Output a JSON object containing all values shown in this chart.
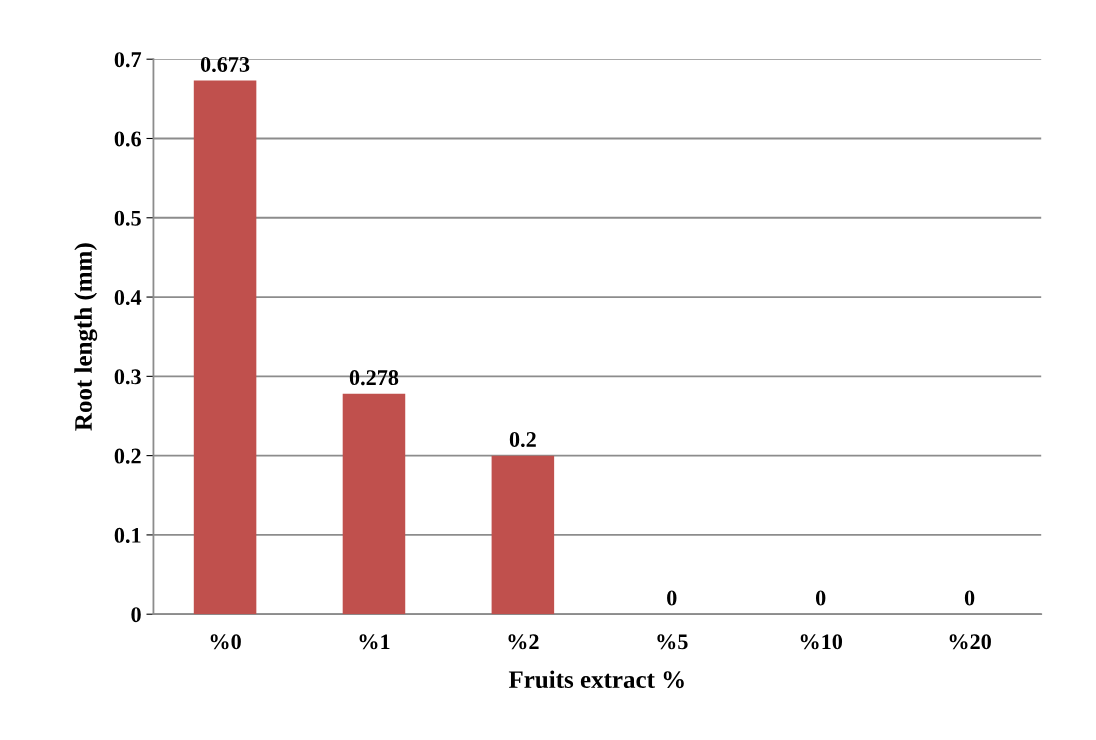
{
  "chart_data": {
    "type": "bar",
    "xlabel": "Fruits extract %",
    "ylabel": "Root length (mm)",
    "categories": [
      "%0",
      "%1",
      "%2",
      "%5",
      "%10",
      "%20"
    ],
    "values": [
      0.673,
      0.278,
      0.2,
      0,
      0,
      0
    ],
    "color": "#c0504d",
    "ylim": [
      0,
      0.7
    ],
    "yticks": [
      0,
      0.1,
      0.2,
      0.3,
      0.4,
      0.5,
      0.6,
      0.7
    ],
    "grid": "y",
    "data_labels": true
  }
}
